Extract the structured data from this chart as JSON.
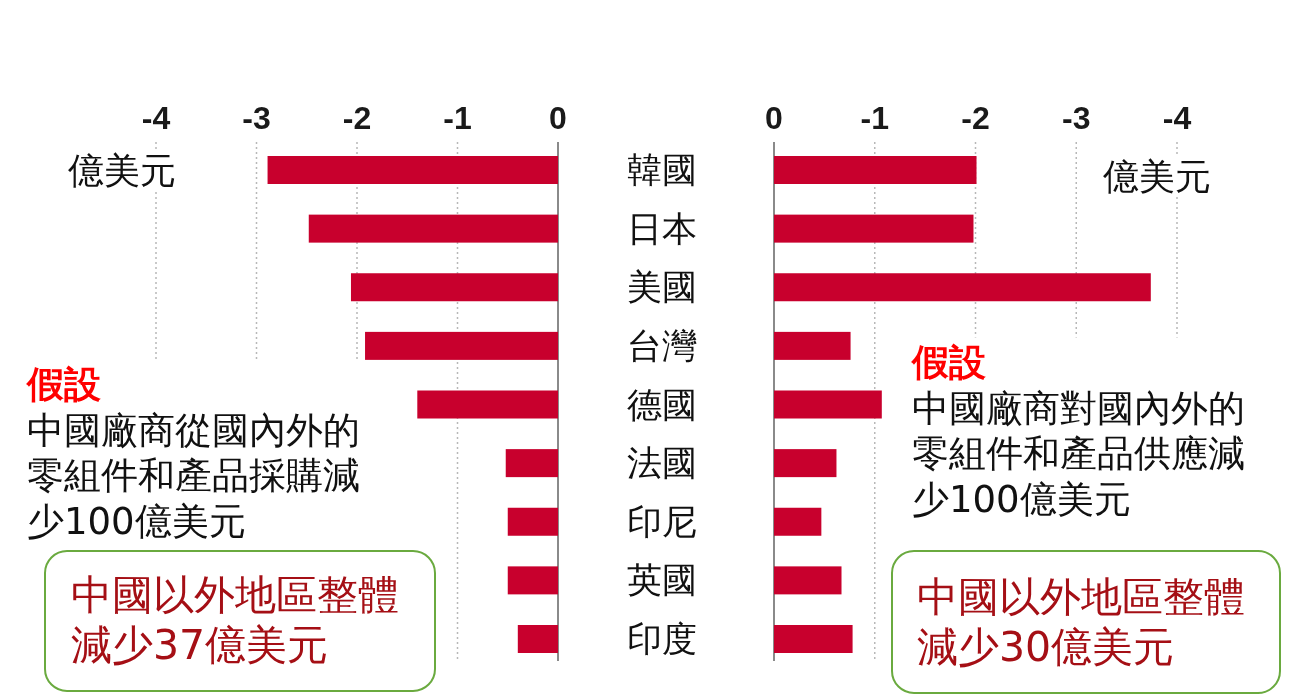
{
  "chart_data": [
    {
      "type": "bar",
      "orientation": "horizontal",
      "xlabel": "億美元",
      "categories": [
        "韓國",
        "日本",
        "美國",
        "台灣",
        "德國",
        "法國",
        "印尼",
        "英國",
        "印度"
      ],
      "values": [
        -2.89,
        -2.48,
        -2.06,
        -1.92,
        -1.4,
        -0.52,
        -0.5,
        -0.5,
        -0.4
      ],
      "color": "#c8002d",
      "xlim": [
        -4,
        0
      ],
      "xticks": [
        -4,
        -3,
        -2,
        -1,
        0
      ],
      "grid": "x",
      "annotations": [
        "假設",
        "中國廠商從國內外的零組件和產品採購減少100億美元",
        "中國以外地區整體減少37億美元"
      ]
    },
    {
      "type": "bar",
      "orientation": "horizontal",
      "xlabel": "億美元",
      "categories": [
        "韓國",
        "日本",
        "美國",
        "台灣",
        "德國",
        "法國",
        "印尼",
        "英國",
        "印度"
      ],
      "values": [
        -2.01,
        -1.98,
        -3.74,
        -0.76,
        -1.07,
        -0.62,
        -0.47,
        -0.67,
        -0.78
      ],
      "color": "#c8002d",
      "xlim": [
        0,
        -4
      ],
      "xticks": [
        0,
        -1,
        -2,
        -3,
        -4
      ],
      "grid": "x",
      "tick_labels": "x",
      "annotations": [
        "假設",
        "中國廠商對國內外的零組件和產品供應減少100億美元",
        "中國以外地區整體減少30億美元"
      ]
    }
  ]
}
